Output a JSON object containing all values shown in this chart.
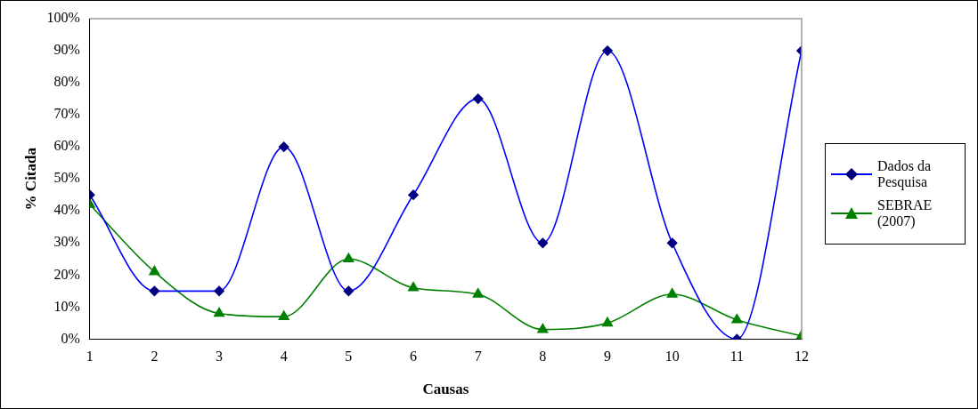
{
  "chart_data": {
    "type": "line",
    "xlabel": "Causas",
    "ylabel": "% Citada",
    "x": [
      1,
      2,
      3,
      4,
      5,
      6,
      7,
      8,
      9,
      10,
      11,
      12
    ],
    "xlim": [
      1,
      12
    ],
    "xticks": [
      1,
      2,
      3,
      4,
      5,
      6,
      7,
      8,
      9,
      10,
      11,
      12
    ],
    "series": [
      {
        "name": "Dados da Pesquisa",
        "color": "#0000ff",
        "values": [
          45,
          15,
          15,
          60,
          15,
          45,
          75,
          30,
          90,
          30,
          0,
          90
        ],
        "marker": "diamond"
      },
      {
        "name": "SEBRAE (2007)",
        "color": "#008000",
        "values": [
          42,
          21,
          8,
          7,
          25,
          16,
          14,
          3,
          5,
          14,
          6,
          1
        ],
        "marker": "triangle"
      }
    ],
    "ylim": [
      0,
      100
    ],
    "yticks": [
      {
        "value": 0,
        "label": "0%"
      },
      {
        "value": 10,
        "label": "10%"
      },
      {
        "value": 20,
        "label": "20%"
      },
      {
        "value": 30,
        "label": "30%"
      },
      {
        "value": 40,
        "label": "40%"
      },
      {
        "value": 50,
        "label": "50%"
      },
      {
        "value": 60,
        "label": "60%"
      },
      {
        "value": 70,
        "label": "70%"
      },
      {
        "value": 80,
        "label": "80%"
      },
      {
        "value": 90,
        "label": "90%"
      },
      {
        "value": 100,
        "label": "100%"
      }
    ],
    "grid": false,
    "legend": "right"
  }
}
